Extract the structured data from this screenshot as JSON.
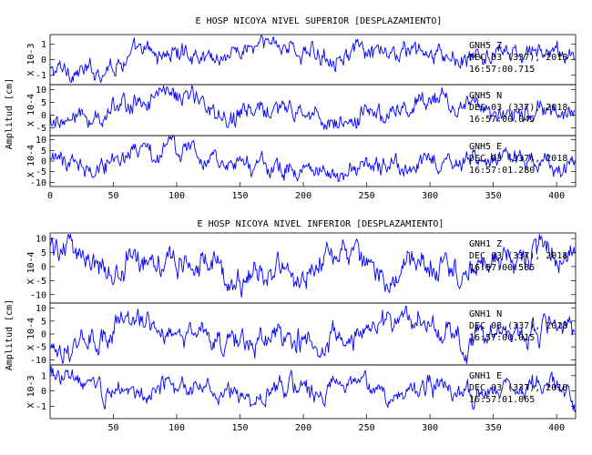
{
  "chart_data": [
    {
      "type": "line",
      "title": "E HOSP NICOYA NIVEL SUPERIOR [DESPLAZAMIENTO]",
      "ylabel": "Amplitud [cm]",
      "xlim": [
        0,
        415
      ],
      "x_ticks": [
        0,
        50,
        100,
        150,
        200,
        250,
        300,
        350,
        400
      ],
      "panels": [
        {
          "multiplier_label": "X 10-3",
          "ylim": [
            -1.6,
            1.6
          ],
          "y_ticks": [
            -1,
            0,
            1
          ],
          "annotation": [
            "GNH5 Z",
            "DEC 03 (337), 2018",
            "16:57:00.715"
          ],
          "series_x": [
            0,
            15,
            30,
            45,
            60,
            75,
            90,
            105,
            120,
            135,
            150,
            165,
            180,
            195,
            210,
            225,
            240,
            255,
            270,
            285,
            300,
            315,
            330,
            345,
            360,
            375,
            390,
            405,
            415
          ],
          "series_y": [
            -0.8,
            -0.6,
            -0.9,
            -0.4,
            0.1,
            0.4,
            0.3,
            0.5,
            0.3,
            0.2,
            0.6,
            0.8,
            1.2,
            0.5,
            0.3,
            0.4,
            0.5,
            0.2,
            0.3,
            0.6,
            0.2,
            0.1,
            -0.1,
            0.2,
            0.4,
            0.2,
            0.6,
            0.3,
            0.1
          ]
        },
        {
          "multiplier_label": "X 10-4",
          "ylim": [
            -8,
            12
          ],
          "y_ticks": [
            -5,
            0,
            5,
            10
          ],
          "annotation": [
            "GNH5 N",
            "DEC 03 (337), 2018",
            "16:57:00.045"
          ],
          "series_x": [
            0,
            15,
            30,
            45,
            60,
            75,
            90,
            105,
            120,
            135,
            150,
            165,
            180,
            195,
            210,
            225,
            240,
            255,
            270,
            285,
            300,
            315,
            330,
            345,
            360,
            375,
            390,
            405,
            415
          ],
          "series_y": [
            -1,
            -2,
            -1,
            1,
            4,
            6,
            8,
            7,
            5,
            1,
            -2,
            2,
            3,
            1,
            -1,
            -3,
            -2,
            0,
            3,
            5,
            7,
            6,
            4,
            1,
            0,
            1,
            3,
            1,
            0
          ]
        },
        {
          "multiplier_label": "X 10-4",
          "ylim": [
            -12,
            12
          ],
          "y_ticks": [
            -10,
            -5,
            0,
            5,
            10
          ],
          "annotation": [
            "GNH5 E",
            "DEC 03 (337), 2018",
            "16:57:01.280"
          ],
          "series_x": [
            0,
            15,
            30,
            45,
            60,
            75,
            90,
            105,
            120,
            135,
            150,
            165,
            180,
            195,
            210,
            225,
            240,
            255,
            270,
            285,
            300,
            315,
            330,
            345,
            360,
            375,
            390,
            405,
            415
          ],
          "series_y": [
            -1,
            0,
            -3,
            -1,
            1,
            3,
            4,
            6,
            3,
            1,
            -1,
            -3,
            -2,
            -4,
            -6,
            -5,
            -3,
            -4,
            -2,
            -1,
            1,
            0,
            -1,
            1,
            3,
            1,
            0,
            -1,
            0
          ]
        }
      ]
    },
    {
      "type": "line",
      "title": "E HOSP NICOYA NIVEL INFERIOR [DESPLAZAMIENTO]",
      "ylabel": "Amplitud [cm]",
      "xlim": [
        0,
        415
      ],
      "x_ticks": [
        50,
        100,
        150,
        200,
        250,
        300,
        350,
        400
      ],
      "panels": [
        {
          "multiplier_label": "X 10-4",
          "ylim": [
            -13,
            12
          ],
          "y_ticks": [
            -10,
            -5,
            0,
            5,
            10
          ],
          "annotation": [
            "GNH1 Z",
            "DEC 03 (337), 2018",
            "16:57:00.585"
          ],
          "series_x": [
            0,
            15,
            30,
            45,
            60,
            75,
            90,
            105,
            120,
            135,
            150,
            165,
            180,
            195,
            210,
            225,
            240,
            255,
            270,
            285,
            300,
            315,
            330,
            345,
            360,
            375,
            390,
            405,
            415
          ],
          "series_y": [
            7,
            8,
            4,
            -4,
            1,
            5,
            3,
            0,
            2,
            -2,
            -5,
            -3,
            0,
            -6,
            2,
            6,
            3,
            -2,
            -4,
            0,
            2,
            -1,
            -3,
            0,
            4,
            2,
            6,
            3,
            2
          ]
        },
        {
          "multiplier_label": "X 10-4",
          "ylim": [
            -12,
            12
          ],
          "y_ticks": [
            -10,
            -5,
            0,
            5,
            10
          ],
          "annotation": [
            "GNH1 N",
            "DEC 03 (337), 2018",
            "16:57:00.015"
          ],
          "series_x": [
            0,
            15,
            30,
            45,
            60,
            75,
            90,
            105,
            120,
            135,
            150,
            165,
            180,
            195,
            210,
            225,
            240,
            255,
            270,
            285,
            300,
            315,
            330,
            345,
            360,
            375,
            390,
            405,
            415
          ],
          "series_y": [
            -5,
            -5,
            -3,
            0,
            4,
            5,
            3,
            1,
            0,
            -3,
            -5,
            -2,
            1,
            -1,
            -4,
            -2,
            0,
            2,
            4,
            7,
            5,
            1,
            -3,
            -1,
            2,
            0,
            3,
            5,
            5
          ]
        },
        {
          "multiplier_label": "X 10-3",
          "ylim": [
            -1.8,
            1.7
          ],
          "y_ticks": [
            -1,
            0,
            1
          ],
          "annotation": [
            "GNH1 E",
            "DEC 03 (337), 2018",
            "16:57:01.065"
          ],
          "series_x": [
            0,
            15,
            30,
            45,
            60,
            75,
            90,
            105,
            120,
            135,
            150,
            165,
            180,
            195,
            210,
            225,
            240,
            255,
            270,
            285,
            300,
            315,
            330,
            345,
            360,
            375,
            390,
            405,
            415
          ],
          "series_y": [
            1.0,
            0.9,
            0.3,
            -0.3,
            0.4,
            -0.2,
            0.6,
            0.2,
            -0.4,
            0.0,
            -0.6,
            -0.3,
            0.3,
            0.0,
            -0.5,
            0.4,
            0.7,
            0.2,
            -1.2,
            0.2,
            0.5,
            0.1,
            -0.4,
            0.0,
            0.5,
            0.2,
            0.6,
            0.0,
            -0.6
          ]
        }
      ]
    }
  ]
}
